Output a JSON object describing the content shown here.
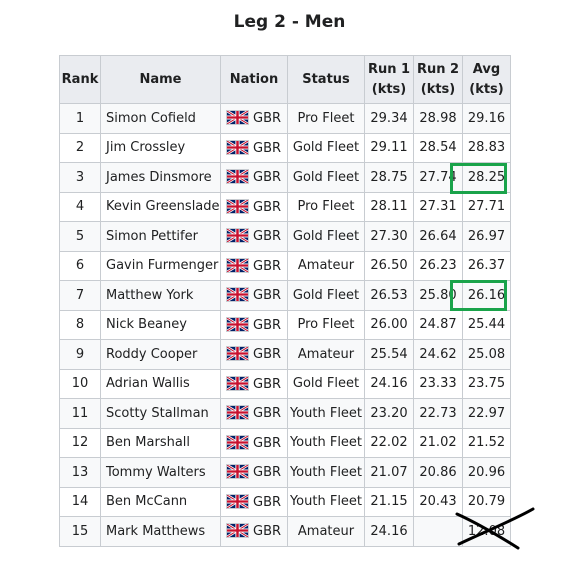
{
  "title": "Leg 2 - Men",
  "headers": {
    "rank": "Rank",
    "name": "Name",
    "nation": "Nation",
    "status": "Status",
    "run1_line1": "Run 1",
    "run1_line2": "(kts)",
    "run2_line1": "Run 2",
    "run2_line2": "(kts)",
    "avg_line1": "Avg",
    "avg_line2": "(kts)"
  },
  "rows": [
    {
      "rank": "1",
      "name": "Simon Cofield",
      "nation": "GBR",
      "status": "Pro Fleet",
      "run1": "29.34",
      "run2": "28.98",
      "avg": "29.16"
    },
    {
      "rank": "2",
      "name": "Jim Crossley",
      "nation": "GBR",
      "status": "Gold Fleet",
      "run1": "29.11",
      "run2": "28.54",
      "avg": "28.83"
    },
    {
      "rank": "3",
      "name": "James Dinsmore",
      "nation": "GBR",
      "status": "Gold Fleet",
      "run1": "28.75",
      "run2": "27.74",
      "avg": "28.25"
    },
    {
      "rank": "4",
      "name": "Kevin Greenslade",
      "nation": "GBR",
      "status": "Pro Fleet",
      "run1": "28.11",
      "run2": "27.31",
      "avg": "27.71"
    },
    {
      "rank": "5",
      "name": "Simon Pettifer",
      "nation": "GBR",
      "status": "Gold Fleet",
      "run1": "27.30",
      "run2": "26.64",
      "avg": "26.97"
    },
    {
      "rank": "6",
      "name": "Gavin Furmenger",
      "nation": "GBR",
      "status": "Amateur",
      "run1": "26.50",
      "run2": "26.23",
      "avg": "26.37"
    },
    {
      "rank": "7",
      "name": "Matthew York",
      "nation": "GBR",
      "status": "Gold Fleet",
      "run1": "26.53",
      "run2": "25.80",
      "avg": "26.16"
    },
    {
      "rank": "8",
      "name": "Nick Beaney",
      "nation": "GBR",
      "status": "Pro Fleet",
      "run1": "26.00",
      "run2": "24.87",
      "avg": "25.44"
    },
    {
      "rank": "9",
      "name": "Roddy Cooper",
      "nation": "GBR",
      "status": "Amateur",
      "run1": "25.54",
      "run2": "24.62",
      "avg": "25.08"
    },
    {
      "rank": "10",
      "name": "Adrian Wallis",
      "nation": "GBR",
      "status": "Gold Fleet",
      "run1": "24.16",
      "run2": "23.33",
      "avg": "23.75"
    },
    {
      "rank": "11",
      "name": "Scotty Stallman",
      "nation": "GBR",
      "status": "Youth Fleet",
      "run1": "23.20",
      "run2": "22.73",
      "avg": "22.97"
    },
    {
      "rank": "12",
      "name": "Ben Marshall",
      "nation": "GBR",
      "status": "Youth Fleet",
      "run1": "22.02",
      "run2": "21.02",
      "avg": "21.52"
    },
    {
      "rank": "13",
      "name": "Tommy Walters",
      "nation": "GBR",
      "status": "Youth Fleet",
      "run1": "21.07",
      "run2": "20.86",
      "avg": "20.96"
    },
    {
      "rank": "14",
      "name": "Ben McCann",
      "nation": "GBR",
      "status": "Youth Fleet",
      "run1": "21.15",
      "run2": "20.43",
      "avg": "20.79"
    },
    {
      "rank": "15",
      "name": "Mark Matthews",
      "nation": "GBR",
      "status": "Amateur",
      "run1": "24.16",
      "run2": "",
      "avg": "12.08"
    }
  ],
  "annotations": {
    "highlight_color": "#1aa34a",
    "highlighted_avg_rows": [
      "3",
      "7"
    ],
    "crossed_out_avg_row": "15"
  }
}
